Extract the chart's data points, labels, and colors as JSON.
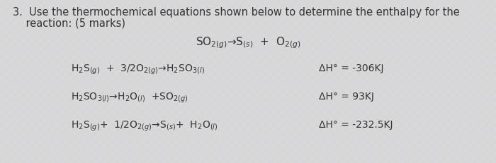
{
  "background_color": "#d8d8d8",
  "title_line1": "3.  Use the thermochemical equations shown below to determine the enthalpy for the",
  "title_line2": "    reaction: (5 marks)",
  "main_reaction": "SO$_{2(g)}$→S$_{(s)}$  +  O$_{2(g)}$",
  "eq1_left": "H$_2$S$_{(g)}$  +  3/2O$_{2(g)}$→H$_2$SO$_{3(l)}$",
  "eq1_right": "ΔH° = -306KJ",
  "eq2_left": "H$_2$SO$_{3(l)}$→H$_2$O$_{(l)}$  +SO$_{2(g)}$",
  "eq2_right": "ΔH° = 93KJ",
  "eq3_left": "H$_2$S$_{(g)}$+  1/2O$_{2(g)}$→S$_{(s)}$+  H$_2$O$_{(l)}$",
  "eq3_right": "ΔH° = -232.5KJ",
  "font_size_title": 10.5,
  "font_size_eq": 10,
  "font_size_main": 11,
  "text_color": "#333333",
  "watermark_color": "#c0cfe0"
}
